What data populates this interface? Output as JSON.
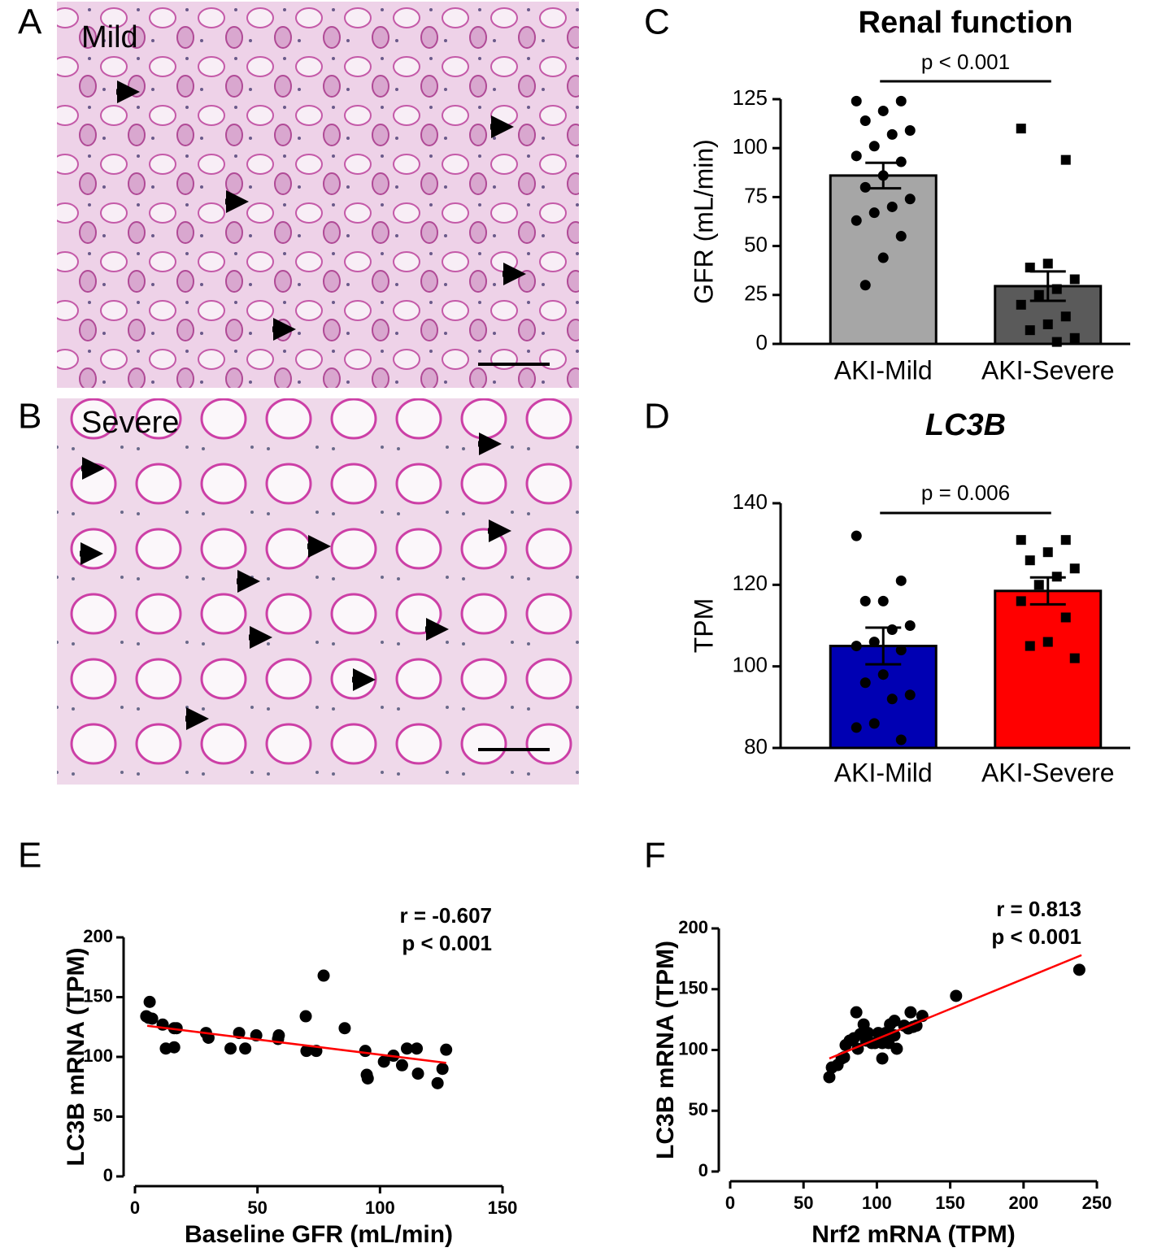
{
  "images": [
    {
      "letter": "A",
      "caption": "Mild"
    },
    {
      "letter": "B",
      "caption": "Severe"
    }
  ],
  "chart_data": [
    {
      "panel": "C",
      "type": "bar",
      "title": "Renal function",
      "title_italic": false,
      "annotation": "p < 0.001",
      "ylabel": "GFR (mL/min)",
      "categories": [
        "AKI-Mild",
        "AKI-Severe"
      ],
      "values": [
        86,
        29.5
      ],
      "errors": [
        6.5,
        7.5
      ],
      "colors": [
        "#a6a6a6",
        "#5a5a5a"
      ],
      "points": [
        [
          124,
          124,
          119,
          114,
          109,
          107,
          101,
          96,
          93,
          86,
          80,
          74,
          70,
          67,
          63,
          55,
          44,
          30
        ],
        [
          110,
          94,
          41,
          39,
          33,
          28,
          25,
          20,
          14,
          10,
          7,
          3,
          1
        ]
      ],
      "point_shapes": [
        "circle",
        "square"
      ],
      "ylim": [
        0,
        125
      ],
      "yticks": [
        0,
        25,
        50,
        75,
        100,
        125
      ]
    },
    {
      "panel": "D",
      "type": "bar",
      "title": "LC3B",
      "title_italic": true,
      "annotation": "p = 0.006",
      "ylabel": "TPM",
      "categories": [
        "AKI-Mild",
        "AKI-Severe"
      ],
      "values": [
        105,
        118.5
      ],
      "errors": [
        4.5,
        3.3
      ],
      "colors": [
        "#0000b3",
        "#ff0000"
      ],
      "points": [
        [
          132,
          121,
          116,
          116,
          110,
          109,
          106,
          105,
          104,
          98,
          96,
          93,
          92,
          86,
          85,
          82
        ],
        [
          131,
          131,
          128,
          126,
          124,
          122,
          120,
          116,
          112,
          106,
          105,
          102
        ]
      ],
      "point_shapes": [
        "circle",
        "square"
      ],
      "ylim": [
        80,
        140
      ],
      "yticks": [
        80,
        100,
        120,
        140
      ]
    },
    {
      "panel": "E",
      "type": "scatter",
      "xlabel": "Baseline GFR (mL/min)",
      "ylabel": "LC3B mRNA (TPM)",
      "annotations": [
        "r = -0.607",
        "p < 0.001"
      ],
      "x": [
        4.6,
        6,
        5.6,
        7,
        11.3,
        12.6,
        16,
        16,
        17,
        29,
        30,
        39,
        42.5,
        45,
        49.5,
        58.4,
        58.7,
        69.7,
        70,
        74,
        77,
        85.6,
        94,
        94.6,
        95,
        101.6,
        105.5,
        109,
        111,
        115,
        115.5,
        123.5,
        125.5,
        127
      ],
      "y": [
        134,
        146,
        132.7,
        132,
        127,
        107,
        124,
        108,
        124,
        120,
        116,
        107,
        120,
        107,
        118,
        115,
        118,
        134,
        105,
        105,
        168,
        124,
        105,
        85,
        82,
        96,
        101,
        93,
        107,
        107,
        86,
        78,
        90,
        106
      ],
      "color": "#000000",
      "fit": {
        "x": [
          5,
          127
        ],
        "y": [
          126,
          95
        ]
      },
      "fit_color": "#ff0000",
      "xlim": [
        0,
        150
      ],
      "xticks": [
        0,
        50,
        100,
        150
      ],
      "ylim": [
        0,
        200
      ],
      "yticks": [
        0,
        50,
        100,
        150,
        200
      ]
    },
    {
      "panel": "F",
      "type": "scatter",
      "xlabel": "Nrf2 mRNA (TPM)",
      "ylabel": "LC3B mRNA (TPM)",
      "annotations": [
        "r = 0.813",
        "p < 0.001"
      ],
      "x": [
        67.6,
        69.3,
        73.2,
        76,
        78.7,
        77.6,
        81.5,
        84.3,
        86,
        87,
        88.7,
        91,
        92.6,
        94,
        96.5,
        98.7,
        101,
        103.7,
        103.7,
        106,
        108,
        109,
        112,
        112,
        113.6,
        118.6,
        121.4,
        123,
        124.7,
        127,
        131,
        154,
        238
      ],
      "y": [
        77.6,
        85.6,
        87.6,
        93,
        104,
        94,
        107.7,
        109.7,
        131,
        101,
        113,
        121,
        107.7,
        114,
        105.7,
        105.7,
        114,
        105.7,
        93,
        114,
        105.7,
        121,
        124,
        112,
        101,
        120,
        117.7,
        131,
        119,
        120,
        128,
        144.5,
        166
      ],
      "color": "#000000",
      "fit": {
        "x": [
          67.6,
          239.5
        ],
        "y": [
          93,
          178
        ]
      },
      "fit_color": "#ff0000",
      "xlim": [
        0,
        250
      ],
      "xticks": [
        0,
        50,
        100,
        150,
        200,
        250
      ],
      "ylim": [
        0,
        200
      ],
      "yticks": [
        0,
        50,
        100,
        150,
        200
      ]
    }
  ]
}
